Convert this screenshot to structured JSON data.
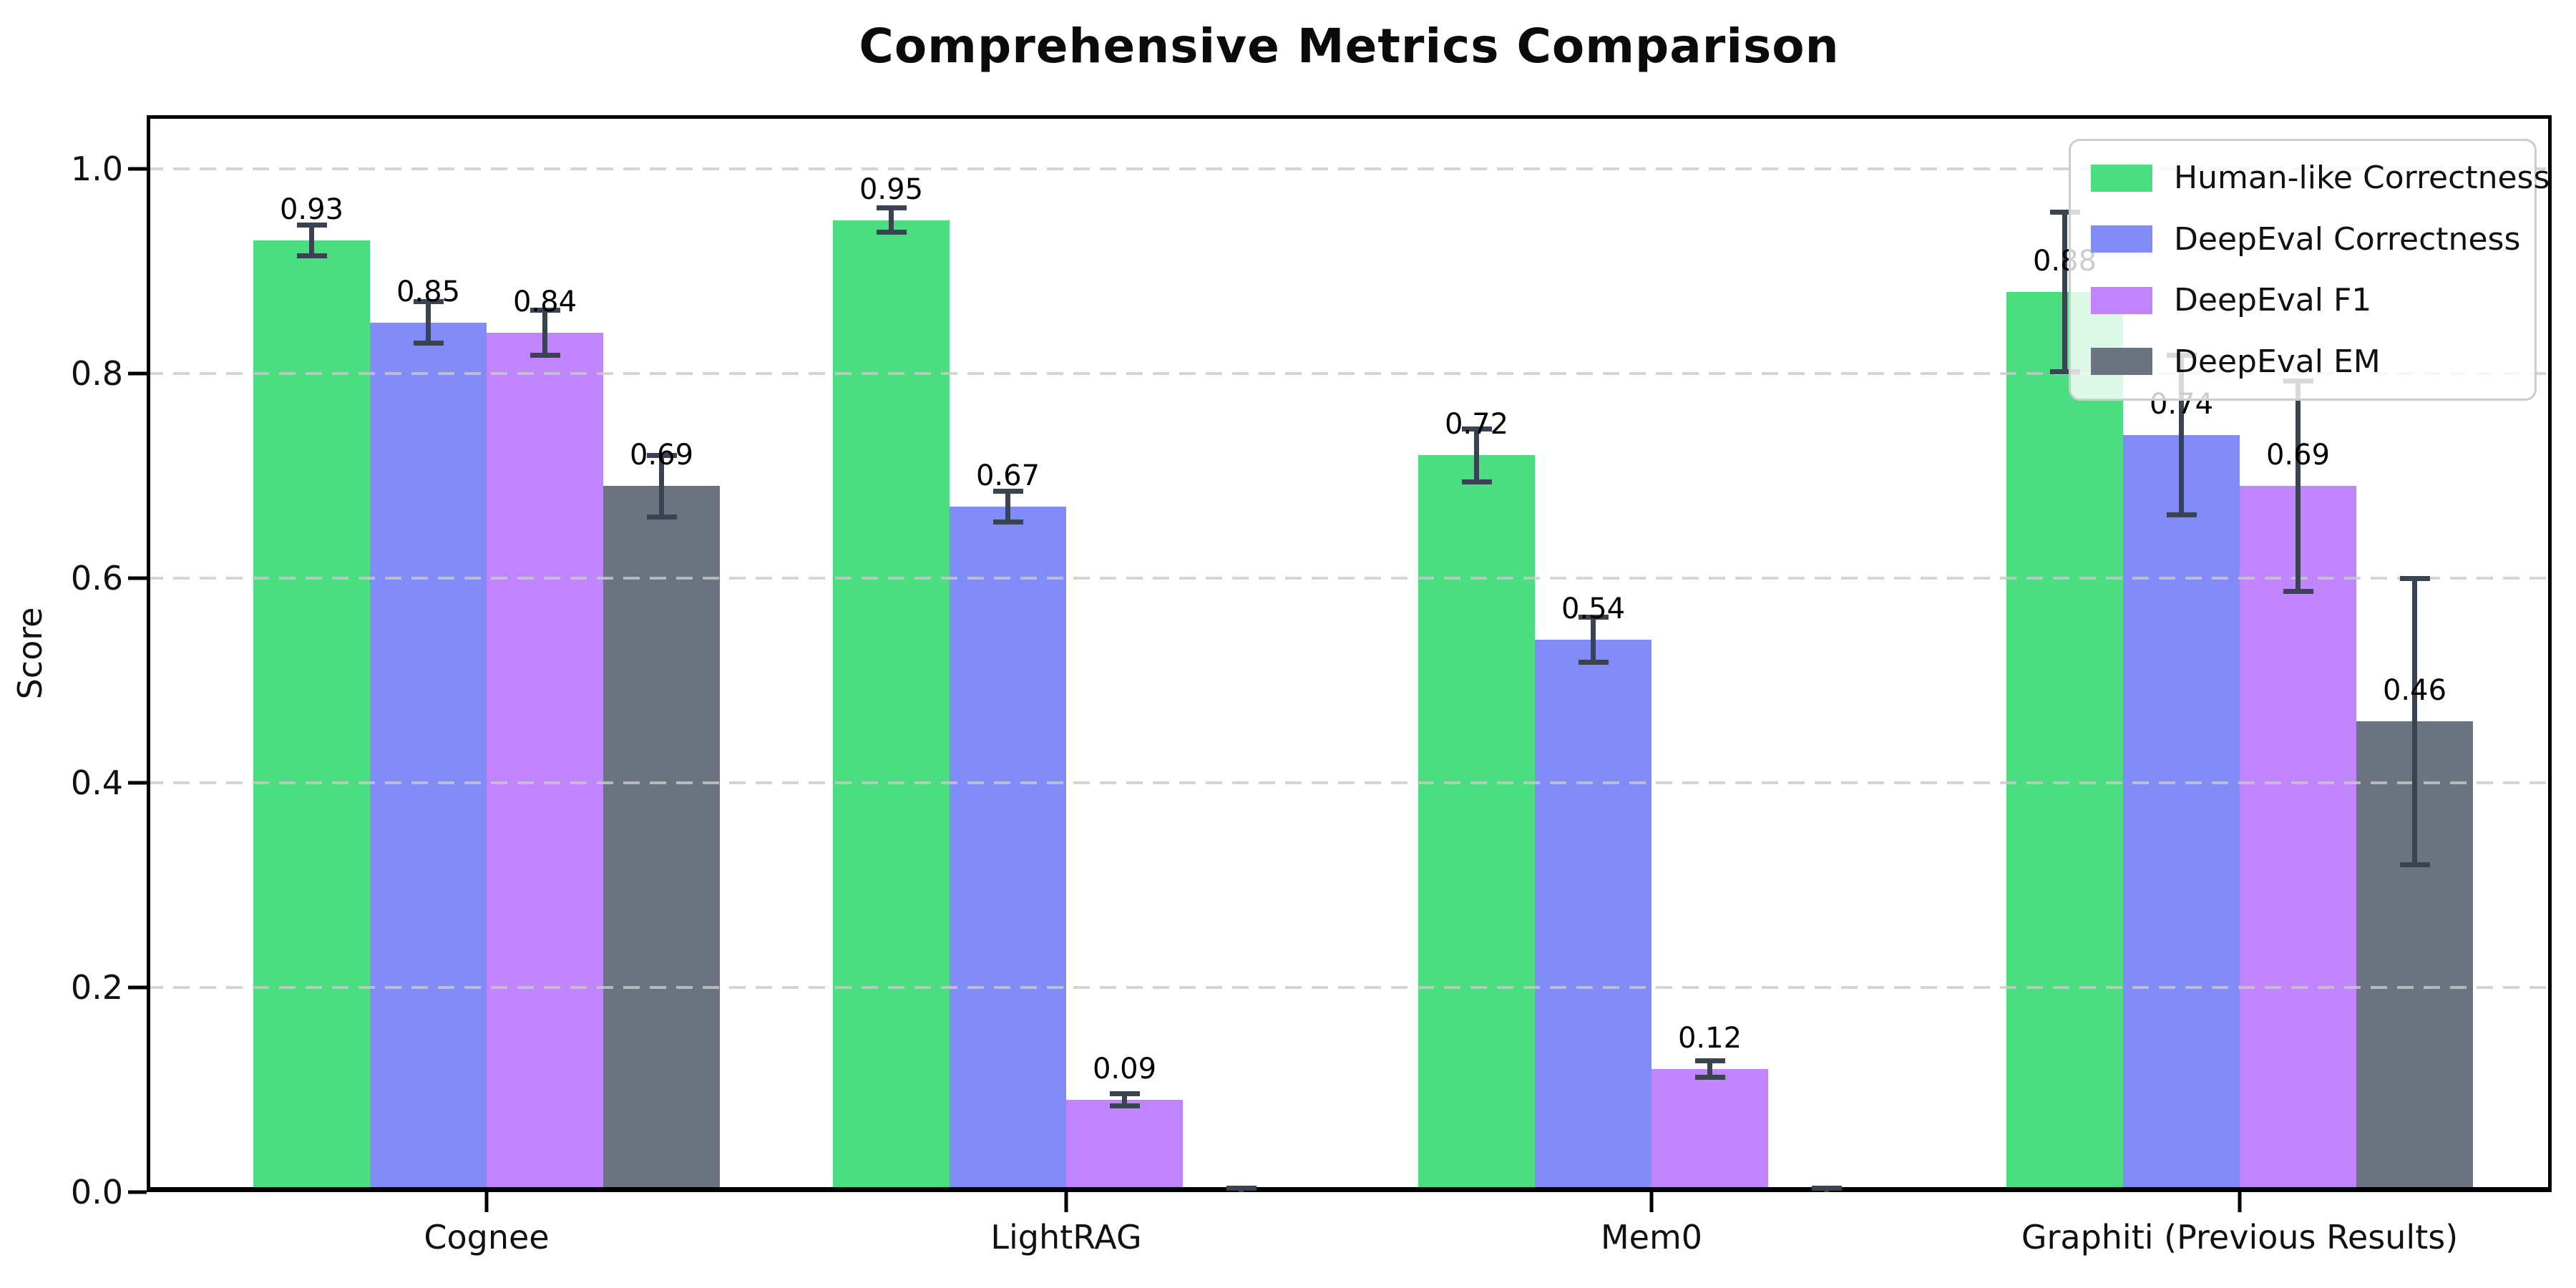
{
  "chart_data": {
    "type": "bar",
    "title": "Comprehensive Metrics Comparison",
    "xlabel": "",
    "ylabel": "Score",
    "categories": [
      "Cognee",
      "LightRAG",
      "Mem0",
      "Graphiti (Previous Results)"
    ],
    "series": [
      {
        "name": "Human-like Correctness",
        "color": "#4ade80",
        "values": [
          0.93,
          0.95,
          0.72,
          0.88
        ],
        "errors": [
          0.015,
          0.012,
          0.026,
          0.078
        ],
        "labels": [
          "0.93",
          "0.95",
          "0.72",
          "0.88"
        ]
      },
      {
        "name": "DeepEval Correctness",
        "color": "#818cf8",
        "values": [
          0.85,
          0.67,
          0.54,
          0.74
        ],
        "errors": [
          0.02,
          0.015,
          0.022,
          0.078
        ],
        "labels": [
          "0.85",
          "0.67",
          "0.54",
          "0.74"
        ]
      },
      {
        "name": "DeepEval F1",
        "color": "#c084fc",
        "values": [
          0.84,
          0.09,
          0.12,
          0.69
        ],
        "errors": [
          0.022,
          0.006,
          0.008,
          0.103
        ],
        "labels": [
          "0.84",
          "0.09",
          "0.12",
          "0.69"
        ]
      },
      {
        "name": "DeepEval EM",
        "color": "#6b7280",
        "values": [
          0.69,
          0.0,
          0.0,
          0.46
        ],
        "errors": [
          0.03,
          0.004,
          0.004,
          0.14
        ],
        "labels": [
          "0.69",
          "",
          "",
          "0.46"
        ]
      }
    ],
    "ylim": [
      0.0,
      1.05
    ],
    "yticks": [
      "0.0",
      "0.2",
      "0.4",
      "0.6",
      "0.8",
      "1.0"
    ],
    "ytick_values": [
      0.0,
      0.2,
      0.4,
      0.6,
      0.8,
      1.0
    ],
    "grid": "horizontal-dashed",
    "grid_color": "#c9c9c9",
    "error_bar_color": "#3a4352",
    "legend_position": "upper right",
    "background_color": "#ffffff"
  }
}
